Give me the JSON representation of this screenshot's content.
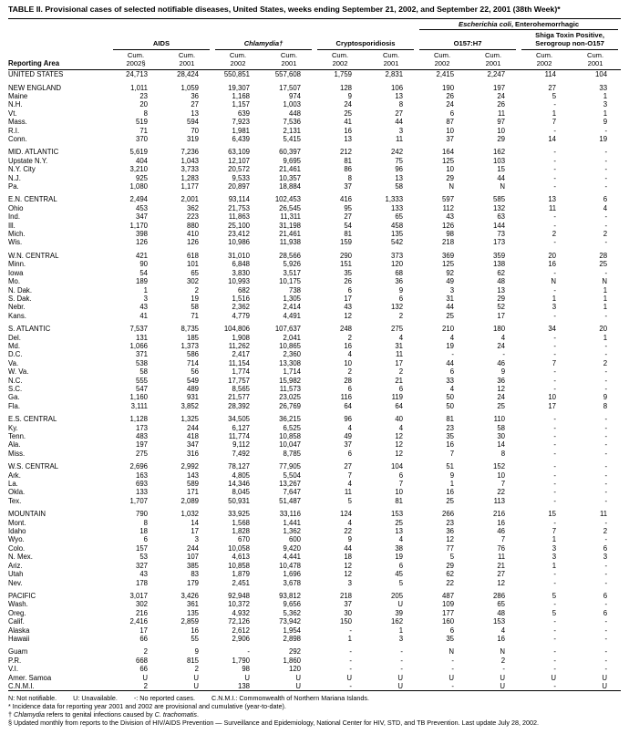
{
  "title": "TABLE II. Provisional cases of selected notifiable diseases, United States, weeks ending September 21, 2002, and September 22, 2001 (38th Week)*",
  "header": {
    "reporting_area": "Reporting Area",
    "ecoli_italic": "Escherichia coli",
    "ecoli_rest": ", Enterohemorrhagic",
    "groups": [
      {
        "line1": "AIDS",
        "line2": ""
      },
      {
        "line1": "Chlamydia†",
        "line2": ""
      },
      {
        "line1": "Cryptosporidiosis",
        "line2": ""
      },
      {
        "line1": "O157:H7",
        "line2": ""
      },
      {
        "line1": "Shiga Toxin Positive,",
        "line2": "Serogroup non-O157"
      }
    ],
    "cum_label": "Cum.",
    "years": [
      "2002§",
      "2001",
      "2002",
      "2001",
      "2002",
      "2001",
      "2002",
      "2001",
      "2002",
      "2001"
    ]
  },
  "groups": [
    {
      "rows": [
        {
          "area": "UNITED STATES",
          "v": [
            "24,713",
            "28,424",
            "550,851",
            "557,608",
            "1,759",
            "2,831",
            "2,415",
            "2,247",
            "114",
            "104"
          ]
        }
      ]
    },
    {
      "rows": [
        {
          "area": "NEW ENGLAND",
          "v": [
            "1,011",
            "1,059",
            "19,307",
            "17,507",
            "128",
            "106",
            "190",
            "197",
            "27",
            "33"
          ]
        },
        {
          "area": "Maine",
          "v": [
            "23",
            "36",
            "1,168",
            "974",
            "9",
            "13",
            "26",
            "24",
            "5",
            "1"
          ]
        },
        {
          "area": "N.H.",
          "v": [
            "20",
            "27",
            "1,157",
            "1,003",
            "24",
            "8",
            "24",
            "26",
            "-",
            "3"
          ]
        },
        {
          "area": "Vt.",
          "v": [
            "8",
            "13",
            "639",
            "448",
            "25",
            "27",
            "6",
            "11",
            "1",
            "1"
          ]
        },
        {
          "area": "Mass.",
          "v": [
            "519",
            "594",
            "7,923",
            "7,536",
            "41",
            "44",
            "87",
            "97",
            "7",
            "9"
          ]
        },
        {
          "area": "R.I.",
          "v": [
            "71",
            "70",
            "1,981",
            "2,131",
            "16",
            "3",
            "10",
            "10",
            "-",
            "-"
          ]
        },
        {
          "area": "Conn.",
          "v": [
            "370",
            "319",
            "6,439",
            "5,415",
            "13",
            "11",
            "37",
            "29",
            "14",
            "19"
          ]
        }
      ]
    },
    {
      "rows": [
        {
          "area": "MID. ATLANTIC",
          "v": [
            "5,619",
            "7,236",
            "63,109",
            "60,397",
            "212",
            "242",
            "164",
            "162",
            "-",
            "-"
          ]
        },
        {
          "area": "Upstate N.Y.",
          "v": [
            "404",
            "1,043",
            "12,107",
            "9,695",
            "81",
            "75",
            "125",
            "103",
            "-",
            "-"
          ]
        },
        {
          "area": "N.Y. City",
          "v": [
            "3,210",
            "3,733",
            "20,572",
            "21,461",
            "86",
            "96",
            "10",
            "15",
            "-",
            "-"
          ]
        },
        {
          "area": "N.J.",
          "v": [
            "925",
            "1,283",
            "9,533",
            "10,357",
            "8",
            "13",
            "29",
            "44",
            "-",
            "-"
          ]
        },
        {
          "area": "Pa.",
          "v": [
            "1,080",
            "1,177",
            "20,897",
            "18,884",
            "37",
            "58",
            "N",
            "N",
            "-",
            "-"
          ]
        }
      ]
    },
    {
      "rows": [
        {
          "area": "E.N. CENTRAL",
          "v": [
            "2,494",
            "2,001",
            "93,114",
            "102,453",
            "416",
            "1,333",
            "597",
            "585",
            "13",
            "6"
          ]
        },
        {
          "area": "Ohio",
          "v": [
            "453",
            "362",
            "21,753",
            "26,545",
            "95",
            "133",
            "112",
            "132",
            "11",
            "4"
          ]
        },
        {
          "area": "Ind.",
          "v": [
            "347",
            "223",
            "11,863",
            "11,311",
            "27",
            "65",
            "43",
            "63",
            "-",
            "-"
          ]
        },
        {
          "area": "Ill.",
          "v": [
            "1,170",
            "880",
            "25,100",
            "31,198",
            "54",
            "458",
            "126",
            "144",
            "-",
            "-"
          ]
        },
        {
          "area": "Mich.",
          "v": [
            "398",
            "410",
            "23,412",
            "21,461",
            "81",
            "135",
            "98",
            "73",
            "2",
            "2"
          ]
        },
        {
          "area": "Wis.",
          "v": [
            "126",
            "126",
            "10,986",
            "11,938",
            "159",
            "542",
            "218",
            "173",
            "-",
            "-"
          ]
        }
      ]
    },
    {
      "rows": [
        {
          "area": "W.N. CENTRAL",
          "v": [
            "421",
            "618",
            "31,010",
            "28,566",
            "290",
            "373",
            "369",
            "359",
            "20",
            "28"
          ]
        },
        {
          "area": "Minn.",
          "v": [
            "90",
            "101",
            "6,848",
            "5,926",
            "151",
            "120",
            "125",
            "138",
            "16",
            "25"
          ]
        },
        {
          "area": "Iowa",
          "v": [
            "54",
            "65",
            "3,830",
            "3,517",
            "35",
            "68",
            "92",
            "62",
            "-",
            "-"
          ]
        },
        {
          "area": "Mo.",
          "v": [
            "189",
            "302",
            "10,993",
            "10,175",
            "26",
            "36",
            "49",
            "48",
            "N",
            "N"
          ]
        },
        {
          "area": "N. Dak.",
          "v": [
            "1",
            "2",
            "682",
            "738",
            "6",
            "9",
            "3",
            "13",
            "-",
            "1"
          ]
        },
        {
          "area": "S. Dak.",
          "v": [
            "3",
            "19",
            "1,516",
            "1,305",
            "17",
            "6",
            "31",
            "29",
            "1",
            "1"
          ]
        },
        {
          "area": "Nebr.",
          "v": [
            "43",
            "58",
            "2,362",
            "2,414",
            "43",
            "132",
            "44",
            "52",
            "3",
            "1"
          ]
        },
        {
          "area": "Kans.",
          "v": [
            "41",
            "71",
            "4,779",
            "4,491",
            "12",
            "2",
            "25",
            "17",
            "-",
            "-"
          ]
        }
      ]
    },
    {
      "rows": [
        {
          "area": "S. ATLANTIC",
          "v": [
            "7,537",
            "8,735",
            "104,806",
            "107,637",
            "248",
            "275",
            "210",
            "180",
            "34",
            "20"
          ]
        },
        {
          "area": "Del.",
          "v": [
            "131",
            "185",
            "1,908",
            "2,041",
            "2",
            "4",
            "4",
            "4",
            "-",
            "1"
          ]
        },
        {
          "area": "Md.",
          "v": [
            "1,066",
            "1,373",
            "11,262",
            "10,865",
            "16",
            "31",
            "19",
            "24",
            "-",
            "-"
          ]
        },
        {
          "area": "D.C.",
          "v": [
            "371",
            "586",
            "2,417",
            "2,360",
            "4",
            "11",
            "-",
            "-",
            "-",
            "-"
          ]
        },
        {
          "area": "Va.",
          "v": [
            "538",
            "714",
            "11,154",
            "13,308",
            "10",
            "17",
            "44",
            "46",
            "7",
            "2"
          ]
        },
        {
          "area": "W. Va.",
          "v": [
            "58",
            "56",
            "1,774",
            "1,714",
            "2",
            "2",
            "6",
            "9",
            "-",
            "-"
          ]
        },
        {
          "area": "N.C.",
          "v": [
            "555",
            "549",
            "17,757",
            "15,982",
            "28",
            "21",
            "33",
            "36",
            "-",
            "-"
          ]
        },
        {
          "area": "S.C.",
          "v": [
            "547",
            "489",
            "8,565",
            "11,573",
            "6",
            "6",
            "4",
            "12",
            "-",
            "-"
          ]
        },
        {
          "area": "Ga.",
          "v": [
            "1,160",
            "931",
            "21,577",
            "23,025",
            "116",
            "119",
            "50",
            "24",
            "10",
            "9"
          ]
        },
        {
          "area": "Fla.",
          "v": [
            "3,111",
            "3,852",
            "28,392",
            "26,769",
            "64",
            "64",
            "50",
            "25",
            "17",
            "8"
          ]
        }
      ]
    },
    {
      "rows": [
        {
          "area": "E.S. CENTRAL",
          "v": [
            "1,128",
            "1,325",
            "34,505",
            "36,215",
            "96",
            "40",
            "81",
            "110",
            "-",
            "-"
          ]
        },
        {
          "area": "Ky.",
          "v": [
            "173",
            "244",
            "6,127",
            "6,525",
            "4",
            "4",
            "23",
            "58",
            "-",
            "-"
          ]
        },
        {
          "area": "Tenn.",
          "v": [
            "483",
            "418",
            "11,774",
            "10,858",
            "49",
            "12",
            "35",
            "30",
            "-",
            "-"
          ]
        },
        {
          "area": "Ala.",
          "v": [
            "197",
            "347",
            "9,112",
            "10,047",
            "37",
            "12",
            "16",
            "14",
            "-",
            "-"
          ]
        },
        {
          "area": "Miss.",
          "v": [
            "275",
            "316",
            "7,492",
            "8,785",
            "6",
            "12",
            "7",
            "8",
            "-",
            "-"
          ]
        }
      ]
    },
    {
      "rows": [
        {
          "area": "W.S. CENTRAL",
          "v": [
            "2,696",
            "2,992",
            "78,127",
            "77,905",
            "27",
            "104",
            "51",
            "152",
            "-",
            "-"
          ]
        },
        {
          "area": "Ark.",
          "v": [
            "163",
            "143",
            "4,805",
            "5,504",
            "7",
            "6",
            "9",
            "10",
            "-",
            "-"
          ]
        },
        {
          "area": "La.",
          "v": [
            "693",
            "589",
            "14,346",
            "13,267",
            "4",
            "7",
            "1",
            "7",
            "-",
            "-"
          ]
        },
        {
          "area": "Okla.",
          "v": [
            "133",
            "171",
            "8,045",
            "7,647",
            "11",
            "10",
            "16",
            "22",
            "-",
            "-"
          ]
        },
        {
          "area": "Tex.",
          "v": [
            "1,707",
            "2,089",
            "50,931",
            "51,487",
            "5",
            "81",
            "25",
            "113",
            "-",
            "-"
          ]
        }
      ]
    },
    {
      "rows": [
        {
          "area": "MOUNTAIN",
          "v": [
            "790",
            "1,032",
            "33,925",
            "33,116",
            "124",
            "153",
            "266",
            "216",
            "15",
            "11"
          ]
        },
        {
          "area": "Mont.",
          "v": [
            "8",
            "14",
            "1,568",
            "1,441",
            "4",
            "25",
            "23",
            "16",
            "-",
            "-"
          ]
        },
        {
          "area": "Idaho",
          "v": [
            "18",
            "17",
            "1,828",
            "1,362",
            "22",
            "13",
            "36",
            "46",
            "7",
            "2"
          ]
        },
        {
          "area": "Wyo.",
          "v": [
            "6",
            "3",
            "670",
            "600",
            "9",
            "4",
            "12",
            "7",
            "1",
            "-"
          ]
        },
        {
          "area": "Colo.",
          "v": [
            "157",
            "244",
            "10,058",
            "9,420",
            "44",
            "38",
            "77",
            "76",
            "3",
            "6"
          ]
        },
        {
          "area": "N. Mex.",
          "v": [
            "53",
            "107",
            "4,613",
            "4,441",
            "18",
            "19",
            "5",
            "11",
            "3",
            "3"
          ]
        },
        {
          "area": "Ariz.",
          "v": [
            "327",
            "385",
            "10,858",
            "10,478",
            "12",
            "6",
            "29",
            "21",
            "1",
            "-"
          ]
        },
        {
          "area": "Utah",
          "v": [
            "43",
            "83",
            "1,879",
            "1,696",
            "12",
            "45",
            "62",
            "27",
            "-",
            "-"
          ]
        },
        {
          "area": "Nev.",
          "v": [
            "178",
            "179",
            "2,451",
            "3,678",
            "3",
            "5",
            "22",
            "12",
            "-",
            "-"
          ]
        }
      ]
    },
    {
      "rows": [
        {
          "area": "PACIFIC",
          "v": [
            "3,017",
            "3,426",
            "92,948",
            "93,812",
            "218",
            "205",
            "487",
            "286",
            "5",
            "6"
          ]
        },
        {
          "area": "Wash.",
          "v": [
            "302",
            "361",
            "10,372",
            "9,656",
            "37",
            "U",
            "109",
            "65",
            "-",
            "-"
          ]
        },
        {
          "area": "Oreg.",
          "v": [
            "216",
            "135",
            "4,932",
            "5,362",
            "30",
            "39",
            "177",
            "48",
            "5",
            "6"
          ]
        },
        {
          "area": "Calif.",
          "v": [
            "2,416",
            "2,859",
            "72,126",
            "73,942",
            "150",
            "162",
            "160",
            "153",
            "-",
            "-"
          ]
        },
        {
          "area": "Alaska",
          "v": [
            "17",
            "16",
            "2,612",
            "1,954",
            "-",
            "1",
            "6",
            "4",
            "-",
            "-"
          ]
        },
        {
          "area": "Hawaii",
          "v": [
            "66",
            "55",
            "2,906",
            "2,898",
            "1",
            "3",
            "35",
            "16",
            "-",
            "-"
          ]
        }
      ]
    },
    {
      "rows": [
        {
          "area": "Guam",
          "v": [
            "2",
            "9",
            "-",
            "292",
            "-",
            "-",
            "N",
            "N",
            "-",
            "-"
          ]
        },
        {
          "area": "P.R.",
          "v": [
            "668",
            "815",
            "1,790",
            "1,860",
            "-",
            "-",
            "-",
            "2",
            "-",
            "-"
          ]
        },
        {
          "area": "V.I.",
          "v": [
            "66",
            "2",
            "98",
            "120",
            "-",
            "-",
            "-",
            "-",
            "-",
            "-"
          ]
        },
        {
          "area": "Amer. Samoa",
          "v": [
            "U",
            "U",
            "U",
            "U",
            "U",
            "U",
            "U",
            "U",
            "U",
            "U"
          ]
        },
        {
          "area": "C.N.M.I.",
          "v": [
            "2",
            "U",
            "138",
            "U",
            "-",
            "U",
            "-",
            "U",
            "-",
            "U"
          ]
        }
      ]
    }
  ],
  "footnotes": {
    "legend": [
      "N: Not notifiable.",
      "U: Unavailable.",
      "-: No reported cases.",
      "C.N.M.I.: Commonwealth of Northern Mariana Islands."
    ],
    "notes": [
      [
        {
          "t": "* Incidence data for reporting year 2001 and 2002 are provisional and cumulative (year-to-date)."
        }
      ],
      [
        {
          "t": "† "
        },
        {
          "t": "Chlamydia",
          "i": true
        },
        {
          "t": " refers to genital infections caused by "
        },
        {
          "t": "C. trachomatis",
          "i": true
        },
        {
          "t": "."
        }
      ],
      [
        {
          "t": "§ Updated monthly from reports to the Division of HIV/AIDS Prevention — Surveillance and Epidemiology, National Center for HIV, STD, and TB Prevention. Last update July 28, 2002."
        }
      ]
    ]
  }
}
